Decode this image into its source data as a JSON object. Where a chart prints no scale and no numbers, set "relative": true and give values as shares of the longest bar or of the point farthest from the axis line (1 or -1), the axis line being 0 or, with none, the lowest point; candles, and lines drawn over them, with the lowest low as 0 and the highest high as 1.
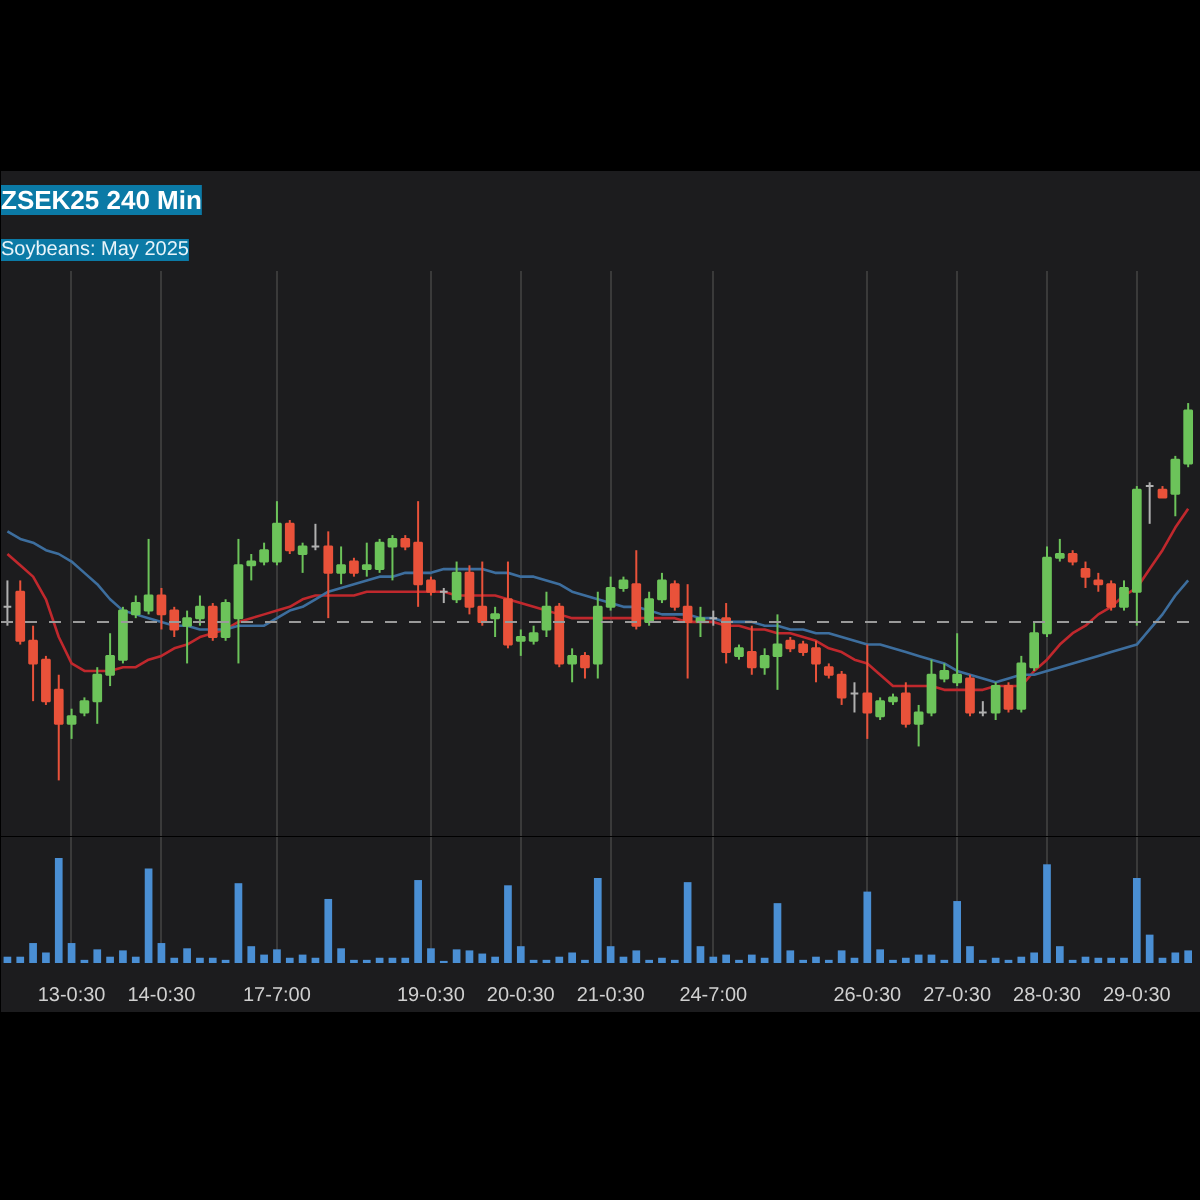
{
  "chart_data": [
    {
      "type": "candlestick",
      "title": "ZSEK25 240 Min",
      "subtitle": "Soybeans: May 2025",
      "relative": true,
      "tick_labels": false,
      "grid": "x",
      "categories": [
        null,
        null,
        null,
        null,
        null,
        null,
        null,
        null,
        null,
        null,
        null,
        null,
        null,
        null,
        null,
        null,
        null,
        null,
        null,
        null,
        null,
        null,
        null,
        null,
        null,
        null,
        null,
        null,
        null,
        null,
        null,
        null,
        null,
        null,
        null,
        null,
        null,
        null,
        null,
        null,
        null,
        null,
        null,
        null,
        null,
        null,
        null,
        null,
        null,
        null,
        null,
        null,
        null,
        null,
        null,
        null,
        null,
        null,
        null,
        null,
        null,
        null,
        null,
        null,
        null,
        null,
        null,
        null,
        null,
        null,
        null,
        null,
        null,
        null,
        null,
        null,
        null,
        null,
        null,
        null,
        null,
        null,
        null,
        null,
        null,
        null,
        null,
        null,
        null,
        null,
        null,
        null,
        null
      ],
      "ohlc": [
        [
          0.46,
          0.53,
          0.41,
          0.46
        ],
        [
          0.5,
          0.53,
          0.36,
          0.37
        ],
        [
          0.37,
          0.41,
          0.21,
          0.31
        ],
        [
          0.32,
          0.33,
          0.2,
          0.21
        ],
        [
          0.24,
          0.28,
          0.0,
          0.15
        ],
        [
          0.15,
          0.19,
          0.11,
          0.17
        ],
        [
          0.18,
          0.22,
          0.17,
          0.21
        ],
        [
          0.21,
          0.3,
          0.15,
          0.28
        ],
        [
          0.28,
          0.39,
          0.25,
          0.33
        ],
        [
          0.32,
          0.46,
          0.31,
          0.45
        ],
        [
          0.44,
          0.49,
          0.43,
          0.47
        ],
        [
          0.45,
          0.64,
          0.44,
          0.49
        ],
        [
          0.49,
          0.51,
          0.4,
          0.44
        ],
        [
          0.45,
          0.46,
          0.38,
          0.4
        ],
        [
          0.41,
          0.45,
          0.31,
          0.43
        ],
        [
          0.43,
          0.49,
          0.41,
          0.46
        ],
        [
          0.46,
          0.47,
          0.37,
          0.38
        ],
        [
          0.38,
          0.48,
          0.37,
          0.47
        ],
        [
          0.43,
          0.64,
          0.31,
          0.57
        ],
        [
          0.57,
          0.6,
          0.53,
          0.58
        ],
        [
          0.58,
          0.63,
          0.57,
          0.61
        ],
        [
          0.58,
          0.74,
          0.57,
          0.68
        ],
        [
          0.68,
          0.69,
          0.6,
          0.61
        ],
        [
          0.6,
          0.63,
          0.55,
          0.62
        ],
        [
          0.62,
          0.68,
          0.61,
          0.62
        ],
        [
          0.62,
          0.66,
          0.43,
          0.55
        ],
        [
          0.55,
          0.62,
          0.52,
          0.57
        ],
        [
          0.58,
          0.59,
          0.54,
          0.55
        ],
        [
          0.56,
          0.63,
          0.54,
          0.57
        ],
        [
          0.56,
          0.64,
          0.55,
          0.63
        ],
        [
          0.62,
          0.65,
          0.53,
          0.64
        ],
        [
          0.64,
          0.65,
          0.61,
          0.62
        ],
        [
          0.63,
          0.74,
          0.46,
          0.52
        ],
        [
          0.53,
          0.54,
          0.49,
          0.5
        ],
        [
          0.5,
          0.51,
          0.47,
          0.5
        ],
        [
          0.48,
          0.58,
          0.47,
          0.55
        ],
        [
          0.55,
          0.57,
          0.44,
          0.46
        ],
        [
          0.46,
          0.58,
          0.41,
          0.42
        ],
        [
          0.43,
          0.46,
          0.38,
          0.44
        ],
        [
          0.48,
          0.58,
          0.35,
          0.36
        ],
        [
          0.37,
          0.4,
          0.33,
          0.38
        ],
        [
          0.37,
          0.41,
          0.36,
          0.39
        ],
        [
          0.4,
          0.5,
          0.38,
          0.46
        ],
        [
          0.46,
          0.47,
          0.3,
          0.31
        ],
        [
          0.31,
          0.35,
          0.26,
          0.33
        ],
        [
          0.33,
          0.34,
          0.27,
          0.3
        ],
        [
          0.31,
          0.5,
          0.27,
          0.46
        ],
        [
          0.46,
          0.54,
          0.45,
          0.51
        ],
        [
          0.51,
          0.54,
          0.5,
          0.53
        ],
        [
          0.52,
          0.61,
          0.4,
          0.41
        ],
        [
          0.42,
          0.5,
          0.41,
          0.48
        ],
        [
          0.48,
          0.55,
          0.47,
          0.53
        ],
        [
          0.52,
          0.53,
          0.45,
          0.46
        ],
        [
          0.46,
          0.52,
          0.27,
          0.42
        ],
        [
          0.42,
          0.46,
          0.38,
          0.43
        ],
        [
          0.43,
          0.45,
          0.41,
          0.43
        ],
        [
          0.43,
          0.47,
          0.31,
          0.34
        ],
        [
          0.33,
          0.36,
          0.32,
          0.35
        ],
        [
          0.34,
          0.41,
          0.28,
          0.3
        ],
        [
          0.3,
          0.35,
          0.28,
          0.33
        ],
        [
          0.33,
          0.44,
          0.24,
          0.36
        ],
        [
          0.37,
          0.38,
          0.34,
          0.35
        ],
        [
          0.36,
          0.37,
          0.33,
          0.34
        ],
        [
          0.35,
          0.37,
          0.26,
          0.31
        ],
        [
          0.3,
          0.31,
          0.27,
          0.28
        ],
        [
          0.28,
          0.29,
          0.2,
          0.22
        ],
        [
          0.23,
          0.26,
          0.18,
          0.23
        ],
        [
          0.23,
          0.36,
          0.11,
          0.18
        ],
        [
          0.17,
          0.22,
          0.16,
          0.21
        ],
        [
          0.21,
          0.23,
          0.2,
          0.22
        ],
        [
          0.23,
          0.26,
          0.14,
          0.15
        ],
        [
          0.15,
          0.2,
          0.09,
          0.18
        ],
        [
          0.18,
          0.32,
          0.17,
          0.28
        ],
        [
          0.27,
          0.31,
          0.26,
          0.29
        ],
        [
          0.26,
          0.39,
          0.25,
          0.28
        ],
        [
          0.27,
          0.28,
          0.17,
          0.18
        ],
        [
          0.18,
          0.21,
          0.17,
          0.18
        ],
        [
          0.18,
          0.26,
          0.16,
          0.25
        ],
        [
          0.25,
          0.26,
          0.18,
          0.19
        ],
        [
          0.19,
          0.33,
          0.18,
          0.31
        ],
        [
          0.3,
          0.42,
          0.29,
          0.39
        ],
        [
          0.39,
          0.62,
          0.38,
          0.59
        ],
        [
          0.59,
          0.64,
          0.58,
          0.6
        ],
        [
          0.6,
          0.61,
          0.57,
          0.58
        ],
        [
          0.56,
          0.58,
          0.51,
          0.54
        ],
        [
          0.53,
          0.55,
          0.5,
          0.52
        ],
        [
          0.52,
          0.53,
          0.45,
          0.46
        ],
        [
          0.46,
          0.53,
          0.45,
          0.51
        ],
        [
          0.5,
          0.78,
          0.41,
          0.77
        ],
        [
          0.78,
          0.79,
          0.68,
          0.78
        ],
        [
          0.77,
          0.78,
          0.75,
          0.75
        ],
        [
          0.76,
          0.86,
          0.7,
          0.85
        ],
        [
          0.84,
          1.0,
          0.83,
          0.98
        ]
      ],
      "colors": [
        "#b0b0b0",
        "#e9523a",
        "#e9523a",
        "#e9523a",
        "#e9523a",
        "#6cc35a",
        "#6cc35a",
        "#6cc35a",
        "#6cc35a",
        "#6cc35a",
        "#6cc35a",
        "#6cc35a",
        "#e9523a",
        "#e9523a",
        "#6cc35a",
        "#6cc35a",
        "#e9523a",
        "#6cc35a",
        "#6cc35a",
        "#6cc35a",
        "#6cc35a",
        "#6cc35a",
        "#e9523a",
        "#6cc35a",
        "#b0b0b0",
        "#e9523a",
        "#6cc35a",
        "#e9523a",
        "#6cc35a",
        "#6cc35a",
        "#6cc35a",
        "#e9523a",
        "#e9523a",
        "#e9523a",
        "#b0b0b0",
        "#6cc35a",
        "#e9523a",
        "#e9523a",
        "#6cc35a",
        "#e9523a",
        "#6cc35a",
        "#6cc35a",
        "#6cc35a",
        "#e9523a",
        "#6cc35a",
        "#e9523a",
        "#6cc35a",
        "#6cc35a",
        "#6cc35a",
        "#e9523a",
        "#6cc35a",
        "#6cc35a",
        "#e9523a",
        "#e9523a",
        "#6cc35a",
        "#b0b0b0",
        "#e9523a",
        "#6cc35a",
        "#e9523a",
        "#6cc35a",
        "#6cc35a",
        "#e9523a",
        "#e9523a",
        "#e9523a",
        "#e9523a",
        "#e9523a",
        "#b0b0b0",
        "#e9523a",
        "#6cc35a",
        "#6cc35a",
        "#e9523a",
        "#6cc35a",
        "#6cc35a",
        "#6cc35a",
        "#6cc35a",
        "#e9523a",
        "#b0b0b0",
        "#6cc35a",
        "#e9523a",
        "#6cc35a",
        "#6cc35a",
        "#6cc35a",
        "#6cc35a",
        "#e9523a",
        "#e9523a",
        "#e9523a",
        "#e9523a",
        "#6cc35a",
        "#6cc35a",
        "#b0b0b0",
        "#e9523a",
        "#6cc35a",
        "#6cc35a"
      ],
      "ref_lines": [
        {
          "axis": "y",
          "value": 0.42,
          "color": "#9a9a9a",
          "line_style": "dashed"
        }
      ],
      "series": [
        {
          "type": "line",
          "color": "#c0282d",
          "values": [
            0.6,
            0.57,
            0.54,
            0.48,
            0.38,
            0.31,
            0.29,
            0.29,
            0.29,
            0.3,
            0.3,
            0.32,
            0.33,
            0.35,
            0.36,
            0.38,
            0.39,
            0.4,
            0.42,
            0.43,
            0.44,
            0.45,
            0.46,
            0.48,
            0.49,
            0.49,
            0.49,
            0.49,
            0.5,
            0.5,
            0.5,
            0.5,
            0.5,
            0.5,
            0.5,
            0.49,
            0.49,
            0.49,
            0.49,
            0.48,
            0.47,
            0.46,
            0.45,
            0.44,
            0.43,
            0.43,
            0.43,
            0.43,
            0.43,
            0.43,
            0.43,
            0.43,
            0.43,
            0.42,
            0.42,
            0.42,
            0.41,
            0.41,
            0.4,
            0.4,
            0.39,
            0.39,
            0.38,
            0.37,
            0.35,
            0.34,
            0.32,
            0.31,
            0.28,
            0.25,
            0.25,
            0.25,
            0.25,
            0.24,
            0.24,
            0.24,
            0.24,
            0.25,
            0.25,
            0.25,
            0.29,
            0.32,
            0.36,
            0.39,
            0.41,
            0.44,
            0.46,
            0.49,
            0.51,
            0.56,
            0.61,
            0.67,
            0.72
          ]
        },
        {
          "type": "line",
          "color": "#3d6e9e",
          "values": [
            0.66,
            0.64,
            0.63,
            0.61,
            0.6,
            0.58,
            0.55,
            0.52,
            0.48,
            0.45,
            0.44,
            0.43,
            0.42,
            0.41,
            0.41,
            0.4,
            0.4,
            0.4,
            0.41,
            0.41,
            0.41,
            0.43,
            0.45,
            0.46,
            0.48,
            0.5,
            0.51,
            0.52,
            0.53,
            0.54,
            0.54,
            0.55,
            0.55,
            0.55,
            0.56,
            0.56,
            0.56,
            0.56,
            0.55,
            0.55,
            0.54,
            0.54,
            0.53,
            0.52,
            0.5,
            0.49,
            0.48,
            0.47,
            0.46,
            0.46,
            0.45,
            0.44,
            0.44,
            0.44,
            0.43,
            0.43,
            0.42,
            0.42,
            0.42,
            0.41,
            0.41,
            0.4,
            0.4,
            0.39,
            0.39,
            0.38,
            0.37,
            0.36,
            0.36,
            0.35,
            0.34,
            0.33,
            0.32,
            0.31,
            0.29,
            0.28,
            0.27,
            0.26,
            0.27,
            0.28,
            0.28,
            0.29,
            0.3,
            0.31,
            0.32,
            0.33,
            0.34,
            0.35,
            0.36,
            0.4,
            0.44,
            0.49,
            0.53
          ]
        }
      ]
    },
    {
      "type": "bar",
      "relative": true,
      "grid": "x",
      "color": "#4a8fd4",
      "categories": [
        null,
        null,
        null,
        null,
        null,
        "13-0:30",
        null,
        null,
        null,
        null,
        null,
        null,
        "14-0:30",
        null,
        null,
        null,
        null,
        null,
        null,
        null,
        null,
        "17-7:00",
        null,
        null,
        null,
        null,
        null,
        null,
        null,
        null,
        null,
        null,
        null,
        "19-0:30",
        null,
        null,
        null,
        null,
        null,
        null,
        "20-0:30",
        null,
        null,
        null,
        null,
        null,
        null,
        "21-0:30",
        null,
        null,
        null,
        null,
        null,
        null,
        null,
        "24-7:00",
        null,
        null,
        null,
        null,
        null,
        null,
        null,
        null,
        null,
        null,
        null,
        "26-0:30",
        null,
        null,
        null,
        null,
        null,
        null,
        "27-0:30",
        null,
        null,
        null,
        null,
        null,
        null,
        "28-0:30",
        null,
        null,
        null,
        null,
        null,
        null,
        "29-0:30",
        null,
        null,
        null,
        null
      ],
      "values": [
        0.06,
        0.06,
        0.19,
        0.1,
        1.0,
        0.19,
        0.03,
        0.13,
        0.06,
        0.12,
        0.06,
        0.9,
        0.19,
        0.05,
        0.14,
        0.05,
        0.05,
        0.03,
        0.76,
        0.16,
        0.08,
        0.13,
        0.05,
        0.08,
        0.05,
        0.61,
        0.14,
        0.03,
        0.03,
        0.05,
        0.05,
        0.05,
        0.79,
        0.14,
        0.02,
        0.13,
        0.12,
        0.09,
        0.06,
        0.74,
        0.16,
        0.03,
        0.03,
        0.06,
        0.1,
        0.03,
        0.81,
        0.16,
        0.06,
        0.12,
        0.03,
        0.05,
        0.03,
        0.77,
        0.16,
        0.06,
        0.08,
        0.03,
        0.08,
        0.05,
        0.57,
        0.12,
        0.03,
        0.06,
        0.03,
        0.12,
        0.05,
        0.68,
        0.13,
        0.03,
        0.05,
        0.08,
        0.08,
        0.03,
        0.59,
        0.16,
        0.03,
        0.05,
        0.03,
        0.06,
        0.1,
        0.94,
        0.16,
        0.03,
        0.06,
        0.05,
        0.05,
        0.05,
        0.81,
        0.27,
        0.05,
        0.1,
        0.12
      ]
    }
  ]
}
